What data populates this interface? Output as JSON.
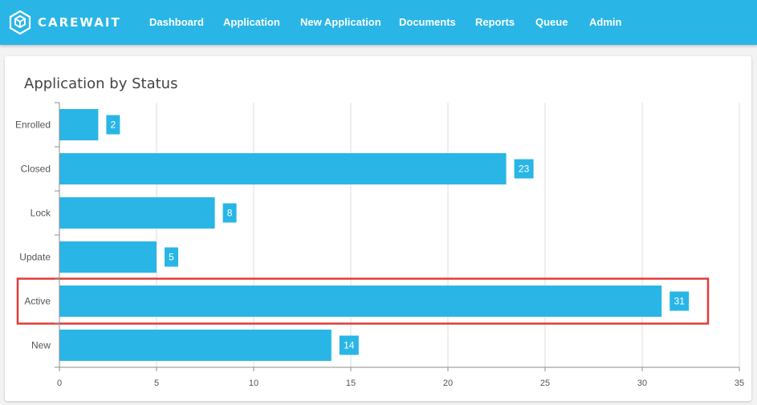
{
  "app": {
    "brand": "CAREWAIT",
    "logo_icon": "hexagon-cube-icon",
    "accent_color": "#29b6e6"
  },
  "nav": {
    "items": [
      {
        "label": "Dashboard"
      },
      {
        "label": "Application"
      },
      {
        "label": "New Application"
      },
      {
        "label": "Documents"
      },
      {
        "label": "Reports"
      },
      {
        "label": "Queue"
      },
      {
        "label": "Admin"
      }
    ]
  },
  "card": {
    "title": "Application by Status"
  },
  "chart_data": {
    "type": "bar",
    "orientation": "horizontal",
    "categories": [
      "Enrolled",
      "Closed",
      "Lock",
      "Update",
      "Active",
      "New"
    ],
    "values": [
      2,
      23,
      8,
      5,
      31,
      14
    ],
    "xlim": [
      0,
      35
    ],
    "xticks": [
      0,
      5,
      10,
      15,
      20,
      25,
      30,
      35
    ],
    "bar_color": "#29b6e6",
    "grid": true,
    "highlighted_category": "Active",
    "highlight_color": "#e03b3b"
  }
}
